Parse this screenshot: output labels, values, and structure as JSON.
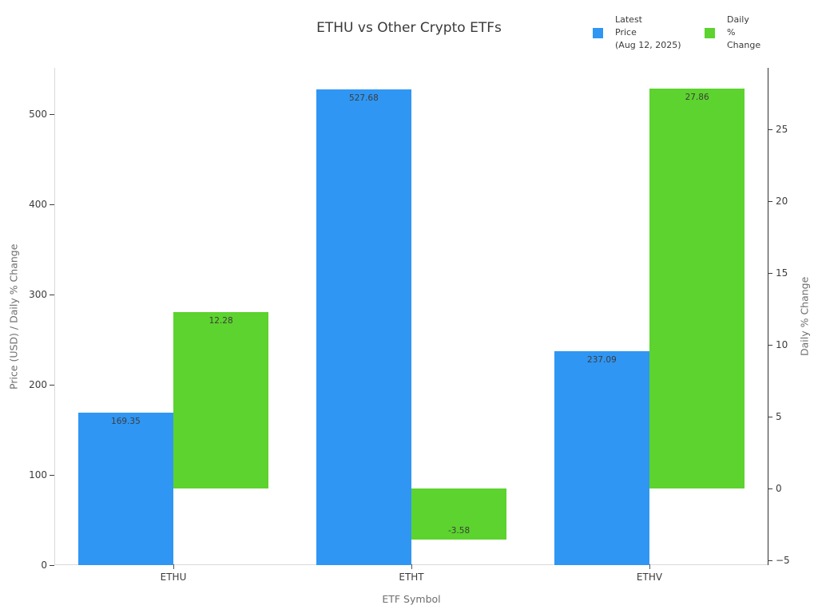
{
  "title": "ETHU vs Other Crypto ETFs",
  "legend": {
    "entries": [
      {
        "key": "latest-price",
        "swatch_color": "#2F96F3",
        "lines": [
          "Latest",
          "Price",
          "(Aug 12, 2025)"
        ]
      },
      {
        "key": "daily-pct-change",
        "swatch_color": "#5CD32E",
        "lines": [
          "Daily",
          "%",
          "Change"
        ]
      }
    ]
  },
  "chart_data": {
    "type": "bar",
    "title": "ETHU vs Other Crypto ETFs",
    "categories": [
      "ETHU",
      "ETHT",
      "ETHV"
    ],
    "series": [
      {
        "key": "latest-price",
        "name": "Latest Price (Aug 12, 2025)",
        "axis": "left",
        "color": "#2F96F3",
        "values": [
          169.35,
          527.68,
          237.09
        ]
      },
      {
        "key": "daily-pct-change",
        "name": "Daily % Change",
        "axis": "right",
        "color": "#5CD32E",
        "values": [
          12.28,
          -3.58,
          27.86
        ]
      }
    ],
    "value_labels": [
      [
        "169.35",
        "527.68",
        "237.09"
      ],
      [
        "12.28",
        "-3.58",
        "27.86"
      ]
    ],
    "xlabel": "ETF Symbol",
    "ylabel_left": "Price (USD) / Daily % Change",
    "ylabel_right": "Daily % Change",
    "left_axis": {
      "ticks": [
        0,
        100,
        200,
        300,
        400,
        500
      ],
      "ylim": [
        0,
        551.3
      ]
    },
    "right_axis": {
      "ticks": [
        -5,
        0,
        5,
        10,
        15,
        20,
        25
      ],
      "ylim": [
        -5.33,
        29.28
      ]
    },
    "bar_width_fraction": 0.4,
    "grid": false,
    "legend_position": "top-right"
  },
  "colors": {
    "price_bar": "#2F96F3",
    "change_bar": "#5CD32E",
    "spine_light": "#d9d9d9",
    "spine_dark": "#303030",
    "tick_text": "#3c3c3c",
    "axis_title_text": "#6e6e6e",
    "title_text": "#3a3a3a"
  }
}
